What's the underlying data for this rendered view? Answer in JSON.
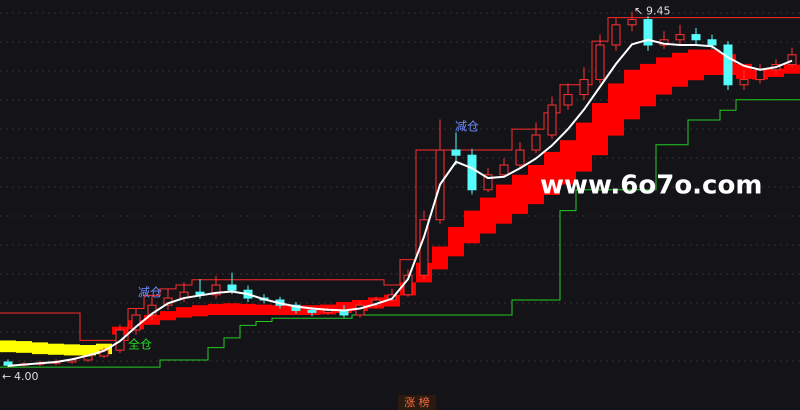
{
  "chart_data": {
    "type": "candlestick",
    "ylim": [
      3.65,
      9.63
    ],
    "up_color": "#ff3232",
    "down_color": "#54fcfc",
    "open": [
      4.08,
      4.03,
      4.05,
      4.06,
      4.08,
      4.11,
      4.17,
      4.26,
      4.57,
      4.8,
      4.95,
      5.06,
      5.15,
      5.11,
      5.26,
      5.18,
      5.06,
      5.03,
      4.95,
      4.87,
      4.84,
      4.87,
      4.8,
      4.95,
      5.03,
      5.11,
      5.41,
      6.26,
      7.33,
      7.25,
      6.72,
      6.95,
      7.1,
      7.33,
      7.56,
      8.02,
      8.18,
      8.41,
      8.94,
      9.25,
      9.33,
      8.94,
      9.02,
      9.1,
      9.02,
      8.94,
      8.33,
      8.41,
      8.56,
      8.64
    ],
    "high": [
      4.12,
      4.08,
      4.1,
      4.12,
      4.14,
      4.2,
      4.3,
      4.65,
      4.9,
      5.1,
      5.2,
      5.3,
      5.35,
      5.4,
      5.45,
      5.25,
      5.12,
      5.08,
      5.0,
      4.92,
      4.92,
      4.95,
      5.0,
      5.08,
      5.2,
      5.5,
      6.4,
      7.8,
      7.6,
      7.35,
      7.05,
      7.2,
      7.45,
      7.75,
      8.15,
      8.35,
      8.6,
      9.1,
      9.35,
      9.45,
      9.38,
      9.15,
      9.25,
      9.2,
      9.1,
      9.0,
      8.55,
      8.65,
      8.72,
      8.9
    ],
    "low": [
      4.0,
      4.0,
      4.02,
      4.03,
      4.05,
      4.08,
      4.14,
      4.22,
      4.5,
      4.72,
      4.88,
      5.0,
      5.05,
      5.05,
      5.12,
      5.0,
      4.98,
      4.9,
      4.82,
      4.78,
      4.8,
      4.76,
      4.76,
      4.9,
      5.0,
      5.08,
      5.35,
      6.2,
      7.1,
      6.65,
      6.68,
      6.9,
      7.05,
      7.28,
      7.5,
      7.95,
      8.1,
      8.35,
      8.85,
      9.15,
      8.85,
      8.88,
      8.95,
      8.95,
      8.88,
      8.25,
      8.25,
      8.35,
      8.5,
      8.6
    ],
    "close": [
      4.03,
      4.05,
      4.06,
      4.08,
      4.11,
      4.17,
      4.26,
      4.57,
      4.8,
      4.95,
      5.06,
      5.15,
      5.11,
      5.26,
      5.18,
      5.06,
      5.03,
      4.95,
      4.87,
      4.84,
      4.87,
      4.8,
      4.95,
      5.03,
      5.11,
      5.41,
      6.26,
      7.33,
      7.25,
      6.72,
      6.95,
      7.1,
      7.33,
      7.56,
      8.02,
      8.18,
      8.41,
      8.94,
      9.25,
      9.33,
      8.94,
      9.02,
      9.1,
      9.02,
      8.94,
      8.33,
      8.41,
      8.56,
      8.64,
      8.79
    ],
    "ma": {
      "color": "#ffffff",
      "values": [
        4.02,
        4.04,
        4.06,
        4.08,
        4.12,
        4.18,
        4.25,
        4.4,
        4.62,
        4.82,
        4.98,
        5.06,
        5.1,
        5.14,
        5.16,
        5.12,
        5.04,
        4.98,
        4.93,
        4.9,
        4.88,
        4.87,
        4.9,
        4.97,
        5.05,
        5.35,
        6.0,
        6.8,
        7.15,
        7.05,
        6.9,
        6.92,
        7.05,
        7.2,
        7.4,
        7.65,
        7.95,
        8.3,
        8.65,
        8.95,
        9.02,
        8.96,
        8.94,
        8.94,
        8.92,
        8.75,
        8.62,
        8.56,
        8.6,
        8.7
      ]
    },
    "bands": [
      {
        "color": "#ffff00",
        "high": [
          4.41,
          4.4,
          4.38,
          4.36,
          4.35,
          4.34,
          4.36,
          null,
          null,
          null,
          null,
          null,
          null,
          null,
          null,
          null,
          null,
          null,
          null,
          null,
          null,
          null,
          null,
          null,
          null,
          null,
          null,
          null,
          null,
          null,
          null,
          null,
          null,
          null,
          null,
          null,
          null,
          null,
          null,
          null,
          null,
          null,
          null,
          null,
          null,
          null,
          null,
          null,
          null,
          null
        ],
        "low": [
          4.23,
          4.22,
          4.2,
          4.19,
          4.18,
          4.18,
          4.2,
          null,
          null,
          null,
          null,
          null,
          null,
          null,
          null,
          null,
          null,
          null,
          null,
          null,
          null,
          null,
          null,
          null,
          null,
          null,
          null,
          null,
          null,
          null,
          null,
          null,
          null,
          null,
          null,
          null,
          null,
          null,
          null,
          null,
          null,
          null,
          null,
          null,
          null,
          null,
          null,
          null,
          null,
          null
        ]
      },
      {
        "color": "#ff0000",
        "high": [
          null,
          null,
          null,
          null,
          null,
          null,
          null,
          4.62,
          4.72,
          4.8,
          4.86,
          4.92,
          4.95,
          4.97,
          4.98,
          4.97,
          4.96,
          4.95,
          4.95,
          4.95,
          4.96,
          5.0,
          5.03,
          5.07,
          5.11,
          5.3,
          5.6,
          5.85,
          6.15,
          6.4,
          6.6,
          6.8,
          6.95,
          7.1,
          7.3,
          7.48,
          7.75,
          8.05,
          8.35,
          8.56,
          8.65,
          8.75,
          8.82,
          8.87,
          8.87,
          8.8,
          8.65,
          8.56,
          8.58,
          8.64
        ],
        "low": [
          null,
          null,
          null,
          null,
          null,
          null,
          null,
          4.5,
          4.58,
          4.65,
          4.72,
          4.76,
          4.78,
          4.8,
          4.8,
          4.8,
          4.8,
          4.8,
          4.8,
          4.8,
          4.81,
          4.83,
          4.86,
          4.9,
          4.93,
          5.1,
          5.3,
          5.5,
          5.7,
          5.9,
          6.05,
          6.2,
          6.35,
          6.5,
          6.64,
          6.8,
          7.0,
          7.25,
          7.55,
          7.8,
          8.0,
          8.18,
          8.3,
          8.4,
          8.48,
          8.48,
          8.42,
          8.41,
          8.45,
          8.5
        ]
      }
    ],
    "step_lines": [
      {
        "color": "#ff2a2a",
        "values": [
          4.83,
          4.83,
          4.83,
          4.83,
          4.83,
          4.41,
          4.41,
          4.41,
          4.9,
          5.1,
          5.2,
          5.26,
          5.34,
          5.34,
          5.34,
          5.34,
          5.34,
          5.34,
          5.34,
          5.34,
          5.34,
          5.34,
          5.34,
          5.34,
          5.26,
          5.65,
          7.33,
          7.33,
          7.33,
          7.33,
          7.33,
          7.33,
          7.65,
          7.65,
          7.9,
          8.33,
          8.33,
          9.0,
          9.36,
          9.36,
          9.36,
          9.36,
          9.36,
          9.36,
          9.36,
          9.36,
          9.36,
          9.36,
          9.36,
          9.36
        ]
      },
      {
        "color": "#22cc22",
        "values": [
          4.0,
          4.0,
          4.0,
          4.0,
          4.0,
          4.0,
          4.0,
          4.0,
          4.0,
          4.0,
          4.11,
          4.11,
          4.11,
          4.3,
          4.45,
          4.64,
          4.7,
          4.75,
          4.75,
          4.75,
          4.75,
          4.75,
          4.8,
          4.8,
          4.8,
          4.8,
          4.8,
          4.8,
          4.8,
          4.8,
          4.8,
          4.8,
          5.03,
          5.03,
          5.03,
          6.4,
          6.72,
          6.72,
          6.72,
          6.72,
          6.72,
          7.41,
          7.41,
          7.79,
          7.79,
          7.94,
          8.1,
          8.1,
          8.1,
          8.1
        ]
      }
    ],
    "max_label": 9.45,
    "min_label": {
      "value": 4,
      "label": "4.00"
    },
    "annotations": [
      "减仓",
      "减仓",
      "全仓"
    ],
    "watermark": "www.6o7o.com",
    "footer": "涨 榜"
  }
}
